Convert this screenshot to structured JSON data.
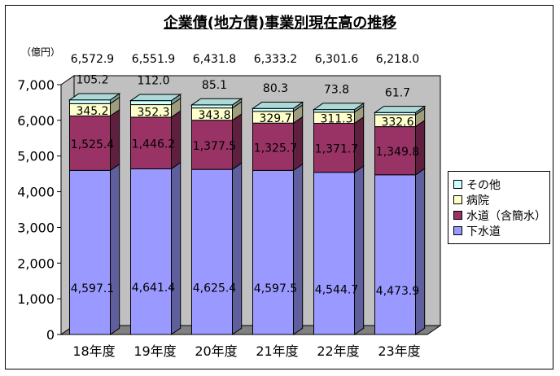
{
  "title": "企業債(地方債)事業別現在高の推移",
  "unit": "（億円）",
  "legend": [
    {
      "label": "その他",
      "color": "#ccffff"
    },
    {
      "label": "病院",
      "color": "#ffffcc"
    },
    {
      "label": "水道（含簡水）",
      "color": "#993366"
    },
    {
      "label": "下水道",
      "color": "#9999ff"
    }
  ],
  "colors": {
    "walls": "#c0c0c0",
    "floor": "#808080",
    "axis": "#000000"
  },
  "chart_data": {
    "type": "bar",
    "stacked": true,
    "title": "企業債(地方債)事業別現在高の推移",
    "ylabel": "（億円）",
    "ylim": [
      0,
      7000
    ],
    "yticks": [
      "0",
      "1,000",
      "2,000",
      "3,000",
      "4,000",
      "5,000",
      "6,000",
      "7,000"
    ],
    "ytick_values": [
      0,
      1000,
      2000,
      3000,
      4000,
      5000,
      6000,
      7000
    ],
    "categories": [
      "18年度",
      "19年度",
      "20年度",
      "21年度",
      "22年度",
      "23年度"
    ],
    "totals": [
      "6,572.9",
      "6,551.9",
      "6,431.8",
      "6,333.2",
      "6,301.6",
      "6,218.0"
    ],
    "series": [
      {
        "name": "下水道",
        "values": [
          4597.1,
          4641.4,
          4625.4,
          4597.5,
          4544.7,
          4473.9
        ],
        "labels": [
          "4,597.1",
          "4,641.4",
          "4,625.4",
          "4,597.5",
          "4,544.7",
          "4,473.9"
        ],
        "color": "#9999ff"
      },
      {
        "name": "水道（含簡水）",
        "values": [
          1525.4,
          1446.2,
          1377.5,
          1325.7,
          1371.7,
          1349.8
        ],
        "labels": [
          "1,525.4",
          "1,446.2",
          "1,377.5",
          "1,325.7",
          "1,371.7",
          "1,349.8"
        ],
        "color": "#993366"
      },
      {
        "name": "病院",
        "values": [
          345.2,
          352.3,
          343.8,
          329.7,
          311.3,
          332.6
        ],
        "labels": [
          "345.2",
          "352.3",
          "343.8",
          "329.7",
          "311.3",
          "332.6"
        ],
        "color": "#ffffcc"
      },
      {
        "name": "その他",
        "values": [
          105.2,
          112.0,
          85.1,
          80.3,
          73.8,
          61.7
        ],
        "labels": [
          "105.2",
          "112.0",
          "85.1",
          "80.3",
          "73.8",
          "61.7"
        ],
        "color": "#ccffff"
      }
    ],
    "grid": false,
    "legend_position": "right"
  }
}
